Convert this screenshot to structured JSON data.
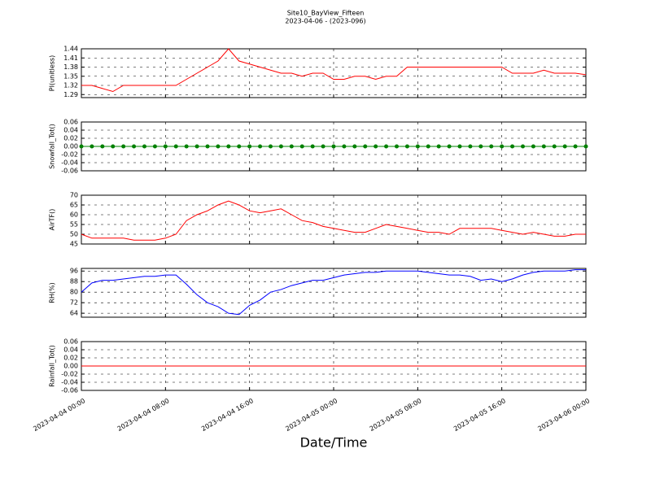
{
  "chart_data": [
    {
      "type": "line",
      "title": "Site10_BayView_Fifteen",
      "subtitle": "2023-04-06 - (2023-096)",
      "ylabel": "PI(unitless)",
      "x": [
        "2023-04-04 00:00",
        "2023-04-04 01:00",
        "2023-04-04 02:00",
        "2023-04-04 03:00",
        "2023-04-04 04:00",
        "2023-04-04 05:00",
        "2023-04-04 06:00",
        "2023-04-04 07:00",
        "2023-04-04 08:00",
        "2023-04-04 09:00",
        "2023-04-04 10:00",
        "2023-04-04 11:00",
        "2023-04-04 12:00",
        "2023-04-04 13:00",
        "2023-04-04 14:00",
        "2023-04-04 15:00",
        "2023-04-04 16:00",
        "2023-04-04 17:00",
        "2023-04-04 18:00",
        "2023-04-04 19:00",
        "2023-04-04 20:00",
        "2023-04-04 21:00",
        "2023-04-04 22:00",
        "2023-04-04 23:00",
        "2023-04-05 00:00",
        "2023-04-05 01:00",
        "2023-04-05 02:00",
        "2023-04-05 03:00",
        "2023-04-05 04:00",
        "2023-04-05 05:00",
        "2023-04-05 06:00",
        "2023-04-05 07:00",
        "2023-04-05 08:00",
        "2023-04-05 09:00",
        "2023-04-05 10:00",
        "2023-04-05 11:00",
        "2023-04-05 12:00",
        "2023-04-05 13:00",
        "2023-04-05 14:00",
        "2023-04-05 15:00",
        "2023-04-05 16:00",
        "2023-04-05 17:00",
        "2023-04-05 18:00",
        "2023-04-05 19:00",
        "2023-04-05 20:00",
        "2023-04-05 21:00",
        "2023-04-05 22:00",
        "2023-04-05 23:00",
        "2023-04-06 00:00"
      ],
      "series": [
        {
          "color": "#ff0000",
          "values": [
            1.32,
            1.32,
            1.31,
            1.3,
            1.32,
            1.32,
            1.32,
            1.32,
            1.32,
            1.32,
            1.34,
            1.36,
            1.38,
            1.4,
            1.44,
            1.4,
            1.39,
            1.38,
            1.37,
            1.36,
            1.36,
            1.35,
            1.36,
            1.36,
            1.34,
            1.34,
            1.35,
            1.35,
            1.34,
            1.35,
            1.35,
            1.38,
            1.38,
            1.38,
            1.38,
            1.38,
            1.38,
            1.38,
            1.38,
            1.38,
            1.38,
            1.36,
            1.36,
            1.36,
            1.37,
            1.36,
            1.36,
            1.36,
            1.355
          ]
        }
      ],
      "xlim": [
        "2023-04-04 00:00",
        "2023-04-06 00:00"
      ],
      "xticks": [
        "2023-04-04 00:00",
        "2023-04-04 08:00",
        "2023-04-04 16:00",
        "2023-04-05 00:00",
        "2023-04-05 08:00",
        "2023-04-05 16:00",
        "2023-04-06 00:00"
      ],
      "ylim": [
        1.28,
        1.44
      ],
      "yticks": [
        1.29,
        1.32,
        1.35,
        1.38,
        1.41,
        1.44
      ],
      "grid": true
    },
    {
      "type": "line",
      "ylabel": "Snowfall_Tot()",
      "x": [
        "2023-04-04 00:00",
        "2023-04-04 01:00",
        "2023-04-04 02:00",
        "2023-04-04 03:00",
        "2023-04-04 04:00",
        "2023-04-04 05:00",
        "2023-04-04 06:00",
        "2023-04-04 07:00",
        "2023-04-04 08:00",
        "2023-04-04 09:00",
        "2023-04-04 10:00",
        "2023-04-04 11:00",
        "2023-04-04 12:00",
        "2023-04-04 13:00",
        "2023-04-04 14:00",
        "2023-04-04 15:00",
        "2023-04-04 16:00",
        "2023-04-04 17:00",
        "2023-04-04 18:00",
        "2023-04-04 19:00",
        "2023-04-04 20:00",
        "2023-04-04 21:00",
        "2023-04-04 22:00",
        "2023-04-04 23:00",
        "2023-04-05 00:00",
        "2023-04-05 01:00",
        "2023-04-05 02:00",
        "2023-04-05 03:00",
        "2023-04-05 04:00",
        "2023-04-05 05:00",
        "2023-04-05 06:00",
        "2023-04-05 07:00",
        "2023-04-05 08:00",
        "2023-04-05 09:00",
        "2023-04-05 10:00",
        "2023-04-05 11:00",
        "2023-04-05 12:00",
        "2023-04-05 13:00",
        "2023-04-05 14:00",
        "2023-04-05 15:00",
        "2023-04-05 16:00",
        "2023-04-05 17:00",
        "2023-04-05 18:00",
        "2023-04-05 19:00",
        "2023-04-05 20:00",
        "2023-04-05 21:00",
        "2023-04-05 22:00",
        "2023-04-05 23:00",
        "2023-04-06 00:00"
      ],
      "series": [
        {
          "color": "#008000",
          "marker": true,
          "values": [
            0,
            0,
            0,
            0,
            0,
            0,
            0,
            0,
            0,
            0,
            0,
            0,
            0,
            0,
            0,
            0,
            0,
            0,
            0,
            0,
            0,
            0,
            0,
            0,
            0,
            0,
            0,
            0,
            0,
            0,
            0,
            0,
            0,
            0,
            0,
            0,
            0,
            0,
            0,
            0,
            0,
            0,
            0,
            0,
            0,
            0,
            0,
            0,
            0
          ]
        }
      ],
      "xlim": [
        "2023-04-04 00:00",
        "2023-04-06 00:00"
      ],
      "xticks": [
        "2023-04-04 00:00",
        "2023-04-04 08:00",
        "2023-04-04 16:00",
        "2023-04-05 00:00",
        "2023-04-05 08:00",
        "2023-04-05 16:00",
        "2023-04-06 00:00"
      ],
      "ylim": [
        -0.06,
        0.06
      ],
      "yticks": [
        -0.06,
        -0.04,
        -0.02,
        {
          "value": 0,
          "label": "0.00"
        },
        0.02,
        0.04,
        0.06
      ],
      "grid": true
    },
    {
      "type": "line",
      "ylabel": "AirTF()",
      "x": [
        "2023-04-04 00:00",
        "2023-04-04 01:00",
        "2023-04-04 02:00",
        "2023-04-04 03:00",
        "2023-04-04 04:00",
        "2023-04-04 05:00",
        "2023-04-04 06:00",
        "2023-04-04 07:00",
        "2023-04-04 08:00",
        "2023-04-04 09:00",
        "2023-04-04 10:00",
        "2023-04-04 11:00",
        "2023-04-04 12:00",
        "2023-04-04 13:00",
        "2023-04-04 14:00",
        "2023-04-04 15:00",
        "2023-04-04 16:00",
        "2023-04-04 17:00",
        "2023-04-04 18:00",
        "2023-04-04 19:00",
        "2023-04-04 20:00",
        "2023-04-04 21:00",
        "2023-04-04 22:00",
        "2023-04-04 23:00",
        "2023-04-05 00:00",
        "2023-04-05 01:00",
        "2023-04-05 02:00",
        "2023-04-05 03:00",
        "2023-04-05 04:00",
        "2023-04-05 05:00",
        "2023-04-05 06:00",
        "2023-04-05 07:00",
        "2023-04-05 08:00",
        "2023-04-05 09:00",
        "2023-04-05 10:00",
        "2023-04-05 11:00",
        "2023-04-05 12:00",
        "2023-04-05 13:00",
        "2023-04-05 14:00",
        "2023-04-05 15:00",
        "2023-04-05 16:00",
        "2023-04-05 17:00",
        "2023-04-05 18:00",
        "2023-04-05 19:00",
        "2023-04-05 20:00",
        "2023-04-05 21:00",
        "2023-04-05 22:00",
        "2023-04-05 23:00",
        "2023-04-06 00:00"
      ],
      "series": [
        {
          "color": "#ff0000",
          "values": [
            50,
            48,
            48,
            48,
            48,
            47,
            47,
            47,
            48,
            50,
            57,
            60,
            62,
            65,
            67,
            65,
            62,
            61,
            62,
            63,
            60,
            57,
            56,
            54,
            53,
            52,
            51,
            51,
            53,
            55,
            54,
            53,
            52,
            51,
            51,
            50,
            53,
            53,
            53,
            53,
            52,
            51,
            50,
            51,
            50,
            49,
            49,
            50,
            50
          ]
        }
      ],
      "xlim": [
        "2023-04-04 00:00",
        "2023-04-06 00:00"
      ],
      "xticks": [
        "2023-04-04 00:00",
        "2023-04-04 08:00",
        "2023-04-04 16:00",
        "2023-04-05 00:00",
        "2023-04-05 08:00",
        "2023-04-05 16:00",
        "2023-04-06 00:00"
      ],
      "ylim": [
        45,
        70
      ],
      "yticks": [
        45,
        50,
        55,
        60,
        65,
        70
      ],
      "grid": true
    },
    {
      "type": "line",
      "ylabel": "RH(%)",
      "x": [
        "2023-04-04 00:00",
        "2023-04-04 01:00",
        "2023-04-04 02:00",
        "2023-04-04 03:00",
        "2023-04-04 04:00",
        "2023-04-04 05:00",
        "2023-04-04 06:00",
        "2023-04-04 07:00",
        "2023-04-04 08:00",
        "2023-04-04 09:00",
        "2023-04-04 10:00",
        "2023-04-04 11:00",
        "2023-04-04 12:00",
        "2023-04-04 13:00",
        "2023-04-04 14:00",
        "2023-04-04 15:00",
        "2023-04-04 16:00",
        "2023-04-04 17:00",
        "2023-04-04 18:00",
        "2023-04-04 19:00",
        "2023-04-04 20:00",
        "2023-04-04 21:00",
        "2023-04-04 22:00",
        "2023-04-04 23:00",
        "2023-04-05 00:00",
        "2023-04-05 01:00",
        "2023-04-05 02:00",
        "2023-04-05 03:00",
        "2023-04-05 04:00",
        "2023-04-05 05:00",
        "2023-04-05 06:00",
        "2023-04-05 07:00",
        "2023-04-05 08:00",
        "2023-04-05 09:00",
        "2023-04-05 10:00",
        "2023-04-05 11:00",
        "2023-04-05 12:00",
        "2023-04-05 13:00",
        "2023-04-05 14:00",
        "2023-04-05 15:00",
        "2023-04-05 16:00",
        "2023-04-05 17:00",
        "2023-04-05 18:00",
        "2023-04-05 19:00",
        "2023-04-05 20:00",
        "2023-04-05 21:00",
        "2023-04-05 22:00",
        "2023-04-05 23:00",
        "2023-04-06 00:00"
      ],
      "series": [
        {
          "color": "#0000ff",
          "values": [
            80,
            87,
            89,
            89,
            90,
            91,
            92,
            92,
            93,
            93,
            86,
            78,
            72,
            69,
            64,
            63,
            70,
            74,
            80,
            82,
            85,
            87,
            89,
            89,
            91,
            93,
            94,
            95,
            95,
            96,
            96,
            96,
            96,
            95,
            94,
            93,
            93,
            92,
            89,
            90,
            88,
            90,
            93,
            95,
            96,
            96,
            96,
            97,
            97
          ]
        }
      ],
      "xlim": [
        "2023-04-04 00:00",
        "2023-04-06 00:00"
      ],
      "xticks": [
        "2023-04-04 00:00",
        "2023-04-04 08:00",
        "2023-04-04 16:00",
        "2023-04-05 00:00",
        "2023-04-05 08:00",
        "2023-04-05 16:00",
        "2023-04-06 00:00"
      ],
      "ylim": [
        61,
        98
      ],
      "yticks": [
        64,
        72,
        80,
        88,
        96
      ],
      "grid": true
    },
    {
      "type": "line",
      "ylabel": "Rainfall_Tot()",
      "xlabel": "Date/Time",
      "x": [
        "2023-04-04 00:00",
        "2023-04-04 01:00",
        "2023-04-04 02:00",
        "2023-04-04 03:00",
        "2023-04-04 04:00",
        "2023-04-04 05:00",
        "2023-04-04 06:00",
        "2023-04-04 07:00",
        "2023-04-04 08:00",
        "2023-04-04 09:00",
        "2023-04-04 10:00",
        "2023-04-04 11:00",
        "2023-04-04 12:00",
        "2023-04-04 13:00",
        "2023-04-04 14:00",
        "2023-04-04 15:00",
        "2023-04-04 16:00",
        "2023-04-04 17:00",
        "2023-04-04 18:00",
        "2023-04-04 19:00",
        "2023-04-04 20:00",
        "2023-04-04 21:00",
        "2023-04-04 22:00",
        "2023-04-04 23:00",
        "2023-04-05 00:00",
        "2023-04-05 01:00",
        "2023-04-05 02:00",
        "2023-04-05 03:00",
        "2023-04-05 04:00",
        "2023-04-05 05:00",
        "2023-04-05 06:00",
        "2023-04-05 07:00",
        "2023-04-05 08:00",
        "2023-04-05 09:00",
        "2023-04-05 10:00",
        "2023-04-05 11:00",
        "2023-04-05 12:00",
        "2023-04-05 13:00",
        "2023-04-05 14:00",
        "2023-04-05 15:00",
        "2023-04-05 16:00",
        "2023-04-05 17:00",
        "2023-04-05 18:00",
        "2023-04-05 19:00",
        "2023-04-05 20:00",
        "2023-04-05 21:00",
        "2023-04-05 22:00",
        "2023-04-05 23:00",
        "2023-04-06 00:00"
      ],
      "series": [
        {
          "color": "#ff0000",
          "values": [
            0,
            0,
            0,
            0,
            0,
            0,
            0,
            0,
            0,
            0,
            0,
            0,
            0,
            0,
            0,
            0,
            0,
            0,
            0,
            0,
            0,
            0,
            0,
            0,
            0,
            0,
            0,
            0,
            0,
            0,
            0,
            0,
            0,
            0,
            0,
            0,
            0,
            0,
            0,
            0,
            0,
            0,
            0,
            0,
            0,
            0,
            0,
            0,
            0
          ]
        }
      ],
      "xlim": [
        "2023-04-04 00:00",
        "2023-04-06 00:00"
      ],
      "xticks": [
        "2023-04-04 00:00",
        "2023-04-04 08:00",
        "2023-04-04 16:00",
        "2023-04-05 00:00",
        "2023-04-05 08:00",
        "2023-04-05 16:00",
        "2023-04-06 00:00"
      ],
      "show_xtick_labels": true,
      "ylim": [
        -0.06,
        0.06
      ],
      "yticks": [
        -0.06,
        -0.04,
        -0.02,
        {
          "value": 0,
          "label": "0.00"
        },
        0.02,
        0.04,
        0.06
      ],
      "grid": true
    }
  ]
}
